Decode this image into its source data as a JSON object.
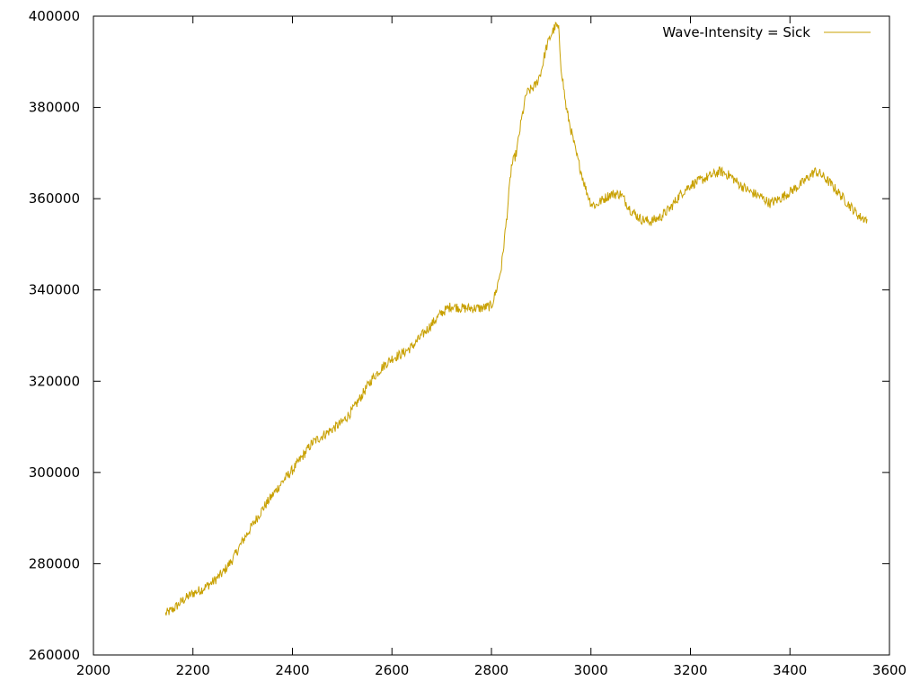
{
  "chart_data": {
    "type": "line",
    "title": "",
    "xlabel": "",
    "ylabel": "",
    "xlim": [
      2000,
      3600
    ],
    "ylim": [
      260000,
      400000
    ],
    "x_ticks": [
      2000,
      2200,
      2400,
      2600,
      2800,
      3000,
      3200,
      3400,
      3600
    ],
    "y_ticks": [
      260000,
      280000,
      300000,
      320000,
      340000,
      360000,
      380000,
      400000
    ],
    "x_tick_labels": [
      "2000",
      "2200",
      "2400",
      "2600",
      "2800",
      "3000",
      "3200",
      "3400",
      "3600"
    ],
    "y_tick_labels": [
      "260000",
      "280000",
      "300000",
      "320000",
      "340000",
      "360000",
      "380000",
      "400000"
    ],
    "grid": false,
    "legend_position": "top-right",
    "series": [
      {
        "name": "Wave-Intensity = Sick",
        "color": "#c8a000",
        "x": [
          2145,
          2160,
          2180,
          2200,
          2220,
          2240,
          2260,
          2280,
          2300,
          2320,
          2340,
          2360,
          2380,
          2400,
          2420,
          2440,
          2460,
          2480,
          2500,
          2520,
          2540,
          2560,
          2580,
          2600,
          2620,
          2640,
          2660,
          2680,
          2700,
          2720,
          2740,
          2760,
          2780,
          2800,
          2810,
          2820,
          2830,
          2840,
          2850,
          2860,
          2870,
          2880,
          2890,
          2900,
          2910,
          2920,
          2930,
          2935,
          2940,
          2950,
          2960,
          2970,
          2980,
          2990,
          3000,
          3010,
          3020,
          3040,
          3060,
          3080,
          3100,
          3120,
          3140,
          3160,
          3180,
          3200,
          3220,
          3240,
          3260,
          3280,
          3300,
          3320,
          3340,
          3360,
          3380,
          3400,
          3420,
          3440,
          3450,
          3460,
          3480,
          3500,
          3520,
          3540,
          3555
        ],
        "values": [
          269000,
          270000,
          272000,
          273500,
          274500,
          276000,
          278000,
          281000,
          285000,
          288500,
          292000,
          295000,
          298000,
          300500,
          303500,
          306500,
          308000,
          309500,
          311000,
          313500,
          317000,
          320500,
          323000,
          325000,
          326000,
          327500,
          330000,
          332500,
          335000,
          336500,
          336000,
          336000,
          336000,
          336500,
          340000,
          345000,
          355000,
          367000,
          370000,
          377000,
          383000,
          384000,
          385000,
          388000,
          393000,
          396000,
          398000,
          397000,
          389000,
          380000,
          375000,
          370000,
          366000,
          362000,
          359000,
          358500,
          359500,
          361000,
          361000,
          357500,
          355500,
          355000,
          356000,
          358000,
          361000,
          363000,
          364000,
          365000,
          366000,
          365000,
          363000,
          361500,
          360500,
          359000,
          360000,
          361500,
          363000,
          365000,
          366000,
          365500,
          363500,
          361000,
          358500,
          356000,
          355500
        ]
      }
    ]
  }
}
